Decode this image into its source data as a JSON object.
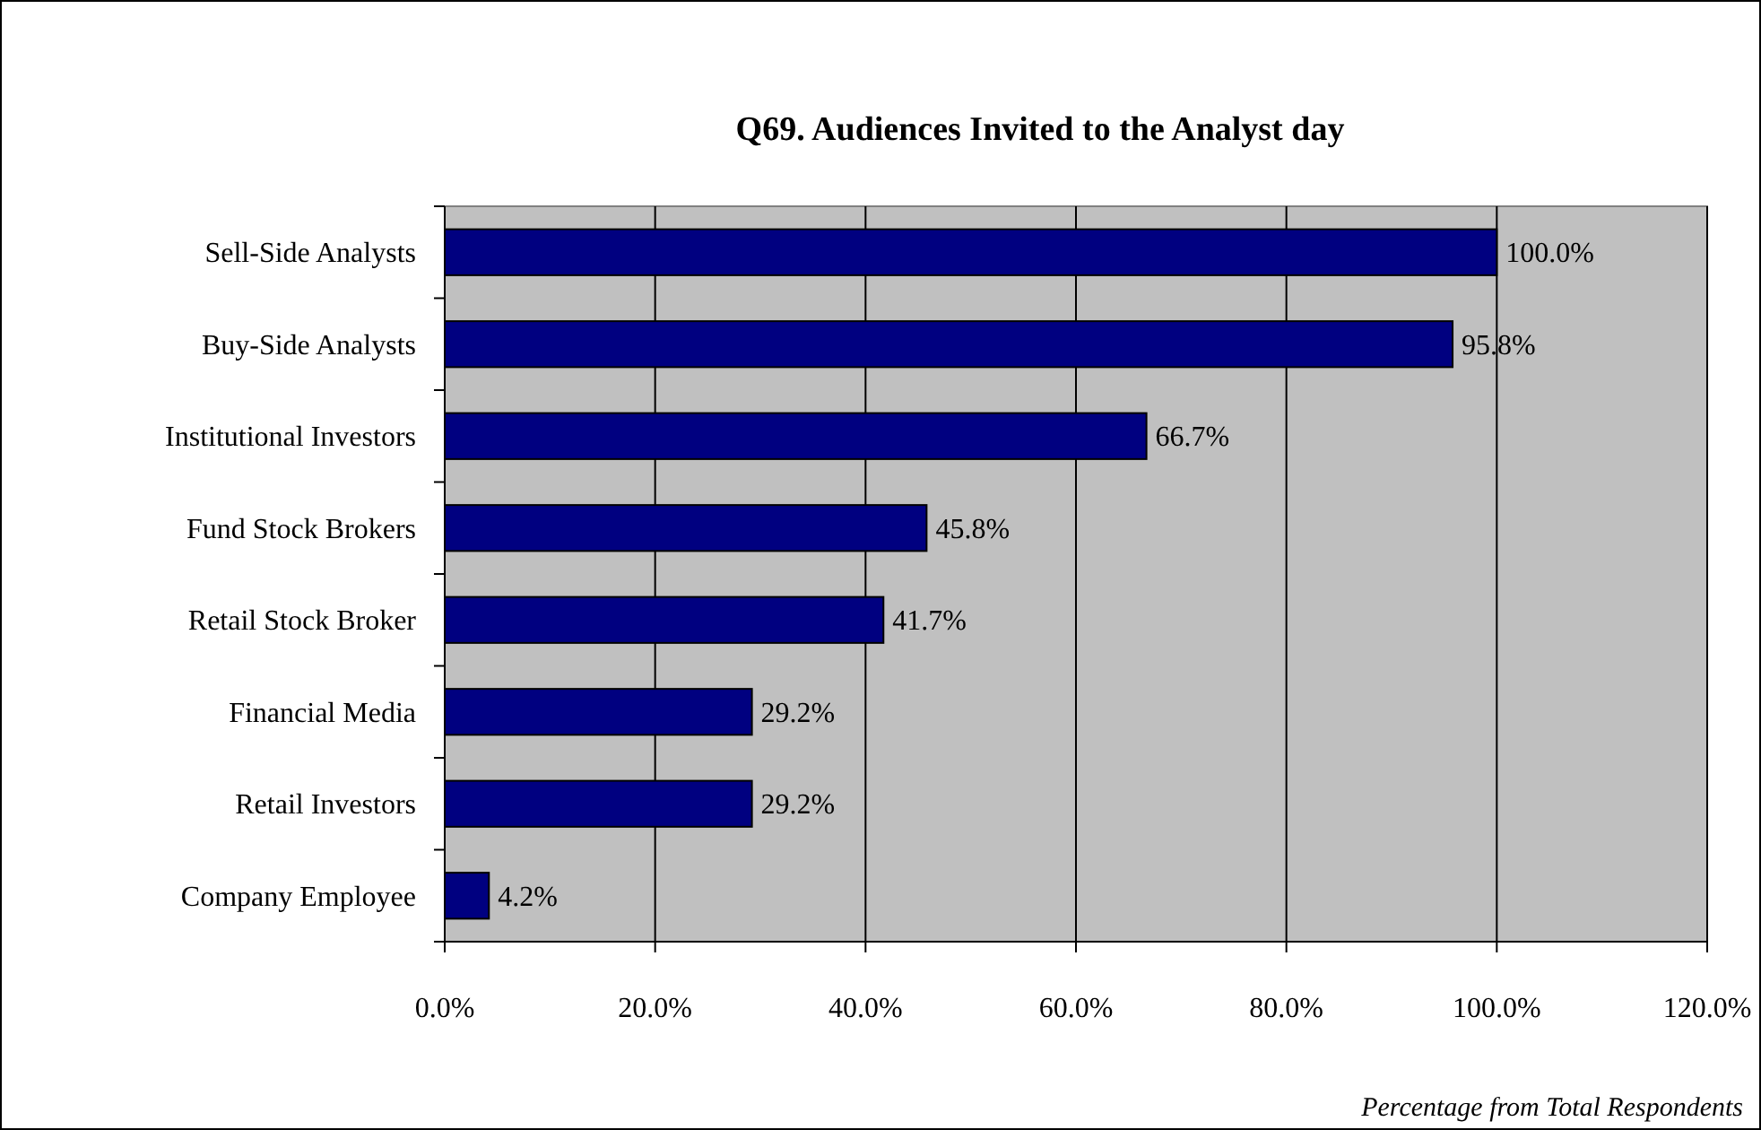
{
  "chart_data": {
    "type": "bar",
    "orientation": "horizontal",
    "title": "Q69. Audiences Invited to the Analyst day",
    "categories": [
      "Sell-Side Analysts",
      "Buy-Side Analysts",
      "Institutional Investors",
      "Fund Stock Brokers",
      "Retail Stock Broker",
      "Financial Media",
      "Retail Investors",
      "Company Employee"
    ],
    "values": [
      100.0,
      95.8,
      66.7,
      45.8,
      41.7,
      29.2,
      29.2,
      4.2
    ],
    "value_labels": [
      "100.0%",
      "95.8%",
      "66.7%",
      "45.8%",
      "41.7%",
      "29.2%",
      "29.2%",
      "4.2%"
    ],
    "color": "#000080",
    "xlim": [
      0,
      120
    ],
    "xticks": [
      {
        "value": 0,
        "label": "0.0%"
      },
      {
        "value": 20,
        "label": "20.0%"
      },
      {
        "value": 40,
        "label": "40.0%"
      },
      {
        "value": 60,
        "label": "60.0%"
      },
      {
        "value": 80,
        "label": "80.0%"
      },
      {
        "value": 100,
        "label": "100.0%"
      },
      {
        "value": 120,
        "label": "120.0%"
      }
    ],
    "grid": "x",
    "annotations": [
      "Percentage from Total Respondents"
    ]
  }
}
